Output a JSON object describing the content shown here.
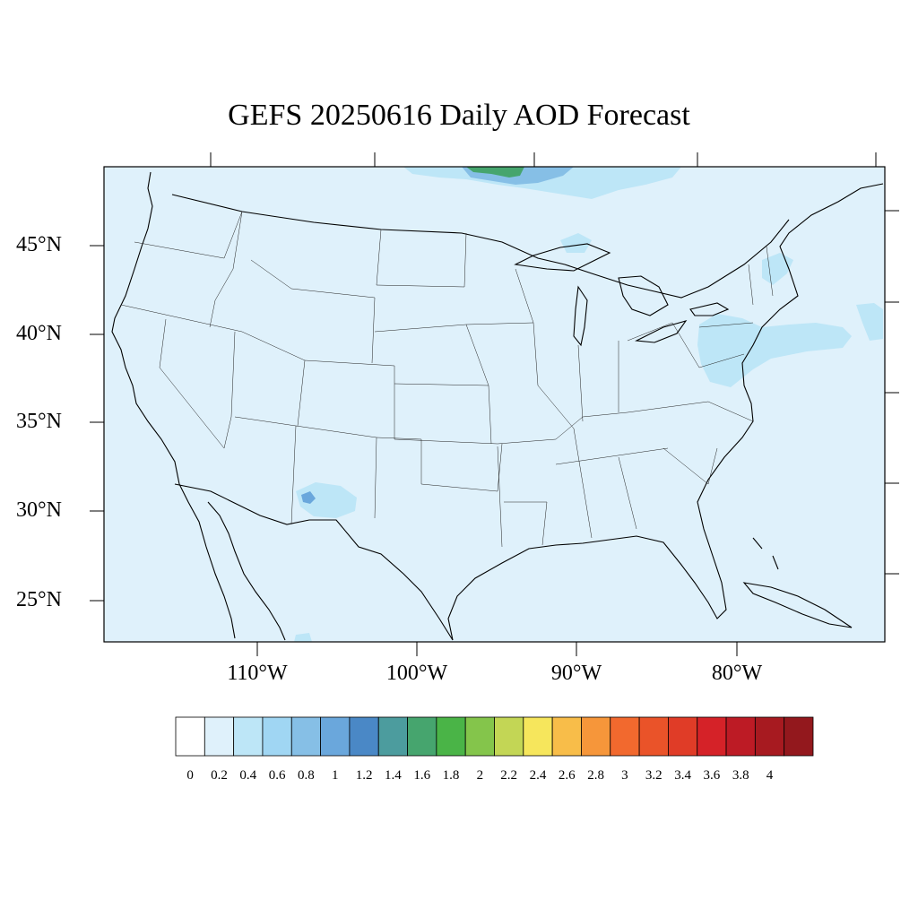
{
  "title": "GEFS 20250616 Daily AOD Forecast",
  "axes": {
    "lat_labels": [
      "45°N",
      "40°N",
      "35°N",
      "30°N",
      "25°N"
    ],
    "lon_labels": [
      "110°W",
      "100°W",
      "90°W",
      "80°W"
    ]
  },
  "colorbar": {
    "labels": [
      "0",
      "0.2",
      "0.4",
      "0.6",
      "0.8",
      "1",
      "1.2",
      "1.4",
      "1.6",
      "1.8",
      "2",
      "2.2",
      "2.4",
      "2.6",
      "2.8",
      "3",
      "3.2",
      "3.4",
      "3.6",
      "3.8",
      "4"
    ],
    "colors": [
      "#ffffff",
      "#dff1fb",
      "#bde6f7",
      "#a0d6f3",
      "#86bfe6",
      "#6aa7dc",
      "#4a88c6",
      "#4c9c9e",
      "#46a56e",
      "#4ab447",
      "#84c54b",
      "#c3d655",
      "#f6e65c",
      "#f8bd49",
      "#f6963a",
      "#f2692e",
      "#ea5329",
      "#e03c27",
      "#d52228",
      "#bd1b25",
      "#a71a20",
      "#93181d"
    ]
  },
  "aod_field": {
    "background_value": 0.1,
    "regions": [
      {
        "name": "canada-north-plume",
        "value": 0.4
      },
      {
        "name": "canada-north-core",
        "value": 0.8
      },
      {
        "name": "canada-north-hotspot",
        "value": 1.6
      },
      {
        "name": "northeast-plume",
        "value": 0.3
      },
      {
        "name": "new-england-patch",
        "value": 0.3
      },
      {
        "name": "new-mexico-patch",
        "value": 0.3
      },
      {
        "name": "new-mexico-core",
        "value": 0.8
      }
    ]
  }
}
